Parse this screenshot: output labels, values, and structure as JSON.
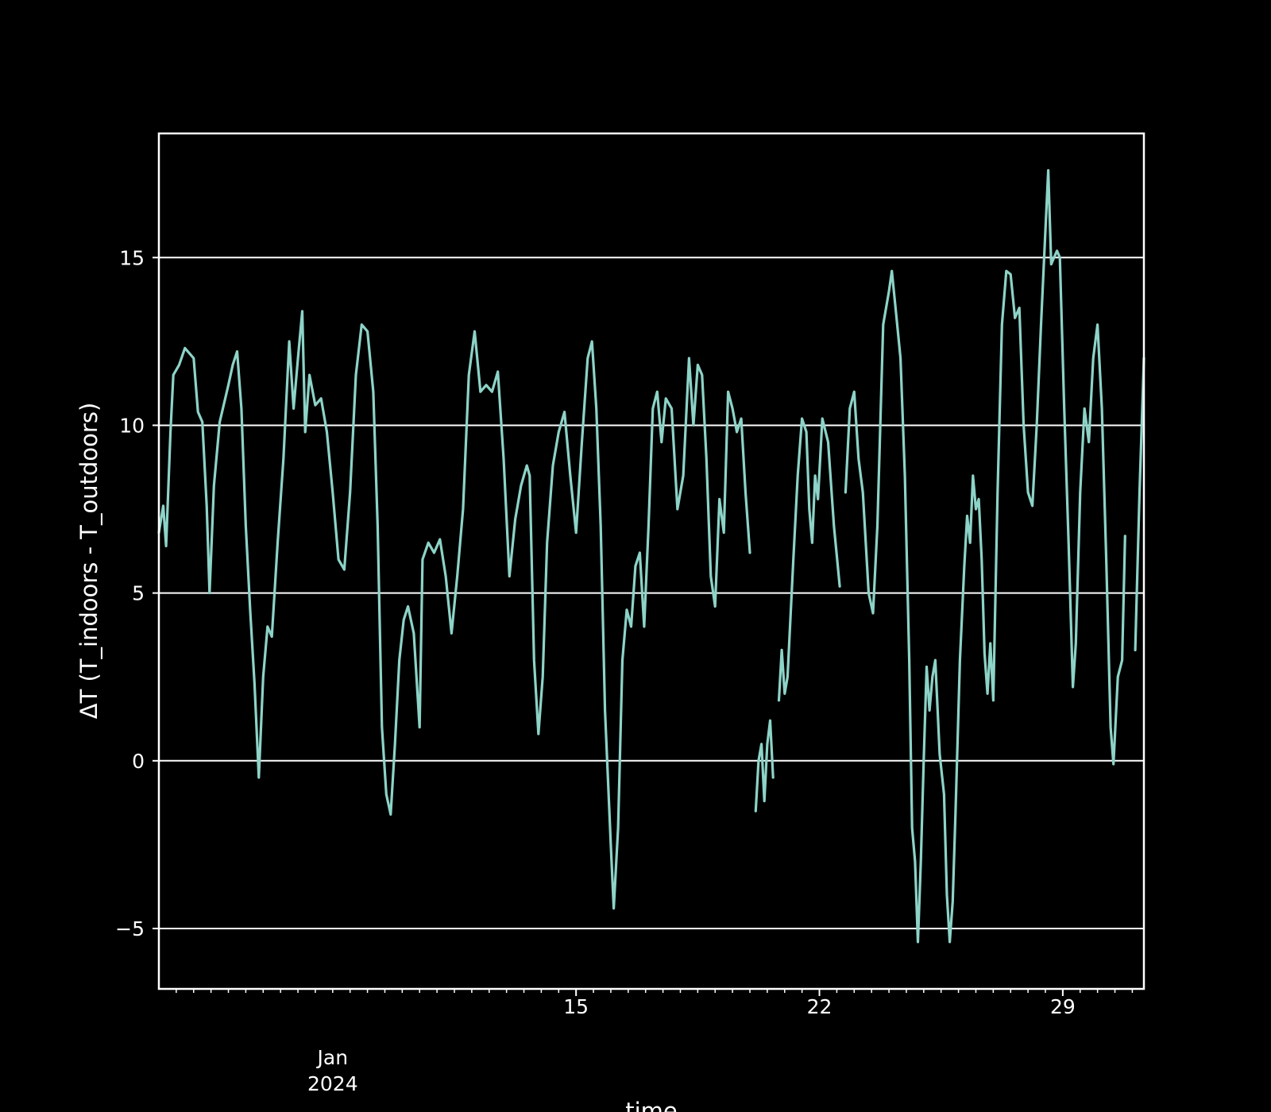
{
  "chart_data": {
    "type": "line",
    "title": "",
    "xlabel": "time",
    "ylabel": "ΔT (T_indoors - T_outdoors)",
    "ylim": [
      -6.8,
      18.7
    ],
    "xlim": [
      "2024-01-03",
      "2024-01-31T08:00"
    ],
    "grid": "horizontal",
    "yticks": [
      {
        "value": -5,
        "label": "−5"
      },
      {
        "value": 0,
        "label": "0"
      },
      {
        "value": 5,
        "label": "5"
      },
      {
        "value": 10,
        "label": "10"
      },
      {
        "value": 15,
        "label": "15"
      }
    ],
    "xticks_major": [
      {
        "date": "2024-01-15",
        "label": "15"
      },
      {
        "date": "2024-01-22",
        "label": "22"
      },
      {
        "date": "2024-01-29",
        "label": "29"
      }
    ],
    "x_offset_label": {
      "date": "2024-01-08",
      "lines": [
        "Jan",
        "2024"
      ]
    },
    "colors": {
      "background": "#000000",
      "line": "#8dd3c7",
      "grid": "#ffffff",
      "axes": "#ffffff"
    },
    "series": [
      {
        "segments": [
          [
            [
              "2024-01-03T00:00",
              6.8
            ],
            [
              "2024-01-03T03:00",
              7.6
            ],
            [
              "2024-01-03T05:00",
              6.4
            ],
            [
              "2024-01-03T08:00",
              9.8
            ],
            [
              "2024-01-03T10:00",
              11.5
            ],
            [
              "2024-01-03T14:00",
              11.8
            ],
            [
              "2024-01-03T18:00",
              12.3
            ],
            [
              "2024-01-04T00:00",
              12.0
            ],
            [
              "2024-01-04T03:00",
              10.4
            ],
            [
              "2024-01-04T06:00",
              10.1
            ],
            [
              "2024-01-04T09:00",
              7.6
            ],
            [
              "2024-01-04T11:00",
              5.0
            ],
            [
              "2024-01-04T14:00",
              8.2
            ],
            [
              "2024-01-04T18:00",
              10.1
            ],
            [
              "2024-01-05T00:00",
              11.2
            ],
            [
              "2024-01-05T03:00",
              11.8
            ],
            [
              "2024-01-05T06:00",
              12.2
            ],
            [
              "2024-01-05T09:00",
              10.5
            ],
            [
              "2024-01-05T12:00",
              7.0
            ],
            [
              "2024-01-05T15:00",
              4.5
            ],
            [
              "2024-01-05T18:00",
              2.3
            ],
            [
              "2024-01-05T21:00",
              -0.5
            ],
            [
              "2024-01-06T00:00",
              2.5
            ],
            [
              "2024-01-06T03:00",
              4.0
            ],
            [
              "2024-01-06T06:00",
              3.7
            ],
            [
              "2024-01-06T10:00",
              6.5
            ],
            [
              "2024-01-06T14:00",
              9.0
            ],
            [
              "2024-01-06T18:00",
              12.5
            ],
            [
              "2024-01-06T21:00",
              10.5
            ],
            [
              "2024-01-07T00:00",
              12.0
            ],
            [
              "2024-01-07T03:00",
              13.4
            ],
            [
              "2024-01-07T05:00",
              9.8
            ],
            [
              "2024-01-07T08:00",
              11.5
            ],
            [
              "2024-01-07T12:00",
              10.6
            ],
            [
              "2024-01-07T16:00",
              10.8
            ],
            [
              "2024-01-07T20:00",
              9.8
            ],
            [
              "2024-01-08T00:00",
              8.0
            ],
            [
              "2024-01-08T04:00",
              6.0
            ],
            [
              "2024-01-08T08:00",
              5.7
            ],
            [
              "2024-01-08T12:00",
              8.0
            ],
            [
              "2024-01-08T16:00",
              11.5
            ],
            [
              "2024-01-08T20:00",
              13.0
            ],
            [
              "2024-01-09T00:00",
              12.8
            ],
            [
              "2024-01-09T04:00",
              11.0
            ],
            [
              "2024-01-09T07:00",
              7.0
            ],
            [
              "2024-01-09T10:00",
              1.0
            ],
            [
              "2024-01-09T13:00",
              -1.0
            ],
            [
              "2024-01-09T16:00",
              -1.6
            ],
            [
              "2024-01-09T19:00",
              0.5
            ],
            [
              "2024-01-09T22:00",
              3.0
            ],
            [
              "2024-01-10T01:00",
              4.2
            ],
            [
              "2024-01-10T04:00",
              4.6
            ],
            [
              "2024-01-10T08:00",
              3.8
            ],
            [
              "2024-01-10T12:00",
              1.0
            ],
            [
              "2024-01-10T14:00",
              6.0
            ],
            [
              "2024-01-10T18:00",
              6.5
            ],
            [
              "2024-01-10T22:00",
              6.2
            ],
            [
              "2024-01-11T02:00",
              6.6
            ],
            [
              "2024-01-11T06:00",
              5.5
            ],
            [
              "2024-01-11T10:00",
              3.8
            ],
            [
              "2024-01-11T14:00",
              5.5
            ],
            [
              "2024-01-11T18:00",
              7.5
            ],
            [
              "2024-01-11T22:00",
              11.5
            ],
            [
              "2024-01-12T02:00",
              12.8
            ],
            [
              "2024-01-12T06:00",
              11.0
            ],
            [
              "2024-01-12T10:00",
              11.2
            ],
            [
              "2024-01-12T14:00",
              11.0
            ],
            [
              "2024-01-12T18:00",
              11.6
            ],
            [
              "2024-01-12T22:00",
              9.0
            ],
            [
              "2024-01-13T02:00",
              5.5
            ],
            [
              "2024-01-13T06:00",
              7.2
            ],
            [
              "2024-01-13T10:00",
              8.2
            ],
            [
              "2024-01-13T14:00",
              8.8
            ],
            [
              "2024-01-13T16:00",
              8.5
            ],
            [
              "2024-01-13T19:00",
              3.0
            ],
            [
              "2024-01-13T22:00",
              0.8
            ],
            [
              "2024-01-14T01:00",
              2.5
            ],
            [
              "2024-01-14T04:00",
              6.5
            ],
            [
              "2024-01-14T08:00",
              8.8
            ],
            [
              "2024-01-14T12:00",
              9.8
            ],
            [
              "2024-01-14T16:00",
              10.4
            ],
            [
              "2024-01-14T20:00",
              8.5
            ],
            [
              "2024-01-15T00:00",
              6.8
            ],
            [
              "2024-01-15T04:00",
              9.5
            ],
            [
              "2024-01-15T08:00",
              12.0
            ],
            [
              "2024-01-15T11:00",
              12.5
            ],
            [
              "2024-01-15T14:00",
              10.5
            ],
            [
              "2024-01-15T17:00",
              7.0
            ],
            [
              "2024-01-15T20:00",
              1.5
            ],
            [
              "2024-01-16T00:00",
              -2.5
            ],
            [
              "2024-01-16T02:00",
              -4.4
            ],
            [
              "2024-01-16T05:00",
              -2.0
            ],
            [
              "2024-01-16T08:00",
              3.0
            ],
            [
              "2024-01-16T11:00",
              4.5
            ],
            [
              "2024-01-16T14:00",
              4.0
            ],
            [
              "2024-01-16T17:00",
              5.8
            ],
            [
              "2024-01-16T20:00",
              6.2
            ],
            [
              "2024-01-16T23:00",
              4.0
            ],
            [
              "2024-01-17T02:00",
              7.0
            ],
            [
              "2024-01-17T05:00",
              10.5
            ],
            [
              "2024-01-17T08:00",
              11.0
            ],
            [
              "2024-01-17T11:00",
              9.5
            ],
            [
              "2024-01-17T14:00",
              10.8
            ],
            [
              "2024-01-17T18:00",
              10.5
            ],
            [
              "2024-01-17T22:00",
              7.5
            ],
            [
              "2024-01-18T02:00",
              8.5
            ],
            [
              "2024-01-18T06:00",
              12.0
            ],
            [
              "2024-01-18T09:00",
              10.0
            ],
            [
              "2024-01-18T12:00",
              11.8
            ],
            [
              "2024-01-18T15:00",
              11.5
            ],
            [
              "2024-01-18T18:00",
              9.0
            ],
            [
              "2024-01-18T21:00",
              5.5
            ],
            [
              "2024-01-19T00:00",
              4.6
            ],
            [
              "2024-01-19T03:00",
              7.8
            ],
            [
              "2024-01-19T06:00",
              6.8
            ],
            [
              "2024-01-19T09:00",
              11.0
            ],
            [
              "2024-01-19T12:00",
              10.5
            ],
            [
              "2024-01-19T15:00",
              9.8
            ],
            [
              "2024-01-19T18:00",
              10.2
            ],
            [
              "2024-01-19T21:00",
              8.0
            ],
            [
              "2024-01-20T00:00",
              6.2
            ]
          ],
          [
            [
              "2024-01-20T04:00",
              -1.5
            ],
            [
              "2024-01-20T06:00",
              0.0
            ],
            [
              "2024-01-20T08:00",
              0.5
            ],
            [
              "2024-01-20T10:00",
              -1.2
            ],
            [
              "2024-01-20T12:00",
              0.5
            ],
            [
              "2024-01-20T14:00",
              1.2
            ],
            [
              "2024-01-20T16:00",
              -0.5
            ]
          ],
          [
            [
              "2024-01-20T20:00",
              1.8
            ],
            [
              "2024-01-20T22:00",
              3.3
            ],
            [
              "2024-01-21T00:00",
              2.0
            ],
            [
              "2024-01-21T02:00",
              2.5
            ],
            [
              "2024-01-21T06:00",
              6.0
            ],
            [
              "2024-01-21T09:00",
              8.5
            ],
            [
              "2024-01-21T12:00",
              10.2
            ],
            [
              "2024-01-21T15:00",
              9.8
            ],
            [
              "2024-01-21T17:00",
              7.5
            ],
            [
              "2024-01-21T19:00",
              6.5
            ],
            [
              "2024-01-21T21:00",
              8.5
            ],
            [
              "2024-01-21T23:00",
              7.8
            ],
            [
              "2024-01-22T02:00",
              10.2
            ],
            [
              "2024-01-22T06:00",
              9.5
            ],
            [
              "2024-01-22T10:00",
              7.0
            ],
            [
              "2024-01-22T14:00",
              5.2
            ]
          ],
          [
            [
              "2024-01-22T18:00",
              8.0
            ],
            [
              "2024-01-22T21:00",
              10.5
            ],
            [
              "2024-01-23T00:00",
              11.0
            ],
            [
              "2024-01-23T03:00",
              9.0
            ],
            [
              "2024-01-23T06:00",
              8.0
            ],
            [
              "2024-01-23T10:00",
              5.0
            ],
            [
              "2024-01-23T13:00",
              4.4
            ],
            [
              "2024-01-23T16:00",
              7.0
            ],
            [
              "2024-01-23T20:00",
              13.0
            ],
            [
              "2024-01-24T00:00",
              14.0
            ],
            [
              "2024-01-24T02:00",
              14.6
            ],
            [
              "2024-01-24T05:00",
              13.3
            ],
            [
              "2024-01-24T08:00",
              12.0
            ],
            [
              "2024-01-24T11:00",
              8.5
            ],
            [
              "2024-01-24T14:00",
              3.0
            ],
            [
              "2024-01-24T16:00",
              -2.0
            ],
            [
              "2024-01-24T18:00",
              -3.0
            ],
            [
              "2024-01-24T20:00",
              -5.4
            ],
            [
              "2024-01-24T22:00",
              -3.0
            ],
            [
              "2024-01-25T00:00",
              0.0
            ],
            [
              "2024-01-25T02:00",
              2.8
            ],
            [
              "2024-01-25T04:00",
              1.5
            ],
            [
              "2024-01-25T06:00",
              2.5
            ],
            [
              "2024-01-25T08:00",
              3.0
            ],
            [
              "2024-01-25T11:00",
              0.2
            ],
            [
              "2024-01-25T14:00",
              -1.0
            ],
            [
              "2024-01-25T16:00",
              -4.0
            ],
            [
              "2024-01-25T18:00",
              -5.4
            ],
            [
              "2024-01-25T20:00",
              -4.2
            ],
            [
              "2024-01-25T22:00",
              -1.5
            ],
            [
              "2024-01-26T01:00",
              3.0
            ],
            [
              "2024-01-26T04:00",
              5.8
            ],
            [
              "2024-01-26T06:00",
              7.3
            ],
            [
              "2024-01-26T08:00",
              6.5
            ],
            [
              "2024-01-26T10:00",
              8.5
            ],
            [
              "2024-01-26T12:00",
              7.5
            ],
            [
              "2024-01-26T14:00",
              7.8
            ],
            [
              "2024-01-26T16:00",
              6.0
            ],
            [
              "2024-01-26T18:00",
              3.2
            ],
            [
              "2024-01-26T20:00",
              2.0
            ],
            [
              "2024-01-26T22:00",
              3.5
            ],
            [
              "2024-01-27T00:00",
              1.8
            ],
            [
              "2024-01-27T03:00",
              8.0
            ],
            [
              "2024-01-27T06:00",
              13.0
            ],
            [
              "2024-01-27T09:00",
              14.6
            ],
            [
              "2024-01-27T12:00",
              14.5
            ],
            [
              "2024-01-27T15:00",
              13.2
            ],
            [
              "2024-01-27T18:00",
              13.5
            ],
            [
              "2024-01-27T21:00",
              10.0
            ],
            [
              "2024-01-28T00:00",
              8.0
            ],
            [
              "2024-01-28T03:00",
              7.6
            ],
            [
              "2024-01-28T06:00",
              10.0
            ],
            [
              "2024-01-28T09:00",
              13.0
            ],
            [
              "2024-01-28T12:00",
              15.8
            ],
            [
              "2024-01-28T14:00",
              17.6
            ],
            [
              "2024-01-28T16:00",
              14.8
            ],
            [
              "2024-01-28T18:00",
              15.0
            ],
            [
              "2024-01-28T20:00",
              15.2
            ],
            [
              "2024-01-28T22:00",
              15.0
            ],
            [
              "2024-01-29T01:00",
              10.5
            ],
            [
              "2024-01-29T04:00",
              6.5
            ],
            [
              "2024-01-29T07:00",
              2.2
            ],
            [
              "2024-01-29T09:00",
              3.5
            ],
            [
              "2024-01-29T12:00",
              8.0
            ],
            [
              "2024-01-29T15:00",
              10.5
            ],
            [
              "2024-01-29T18:00",
              9.5
            ],
            [
              "2024-01-29T21:00",
              12.0
            ],
            [
              "2024-01-30T00:00",
              13.0
            ],
            [
              "2024-01-30T03:00",
              10.5
            ],
            [
              "2024-01-30T06:00",
              6.0
            ],
            [
              "2024-01-30T09:00",
              1.0
            ],
            [
              "2024-01-30T11:00",
              -0.1
            ],
            [
              "2024-01-30T14:00",
              2.5
            ],
            [
              "2024-01-30T17:00",
              3.0
            ],
            [
              "2024-01-30T19:00",
              6.7
            ]
          ],
          [
            [
              "2024-01-31T02:00",
              3.3
            ],
            [
              "2024-01-31T05:00",
              8.0
            ],
            [
              "2024-01-31T08:00",
              12.0
            ]
          ]
        ]
      }
    ]
  }
}
